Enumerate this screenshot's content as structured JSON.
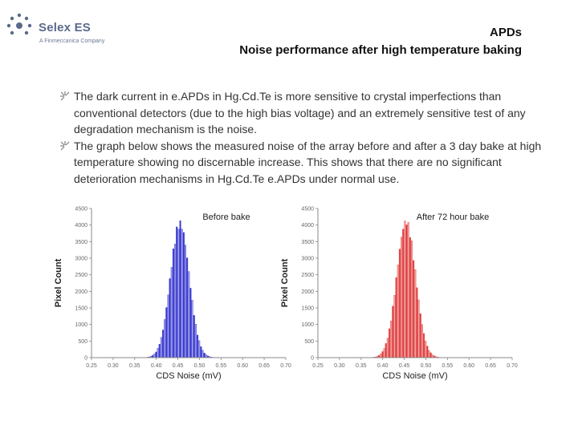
{
  "logo": {
    "name": "Selex ES",
    "tagline": "A Finmeccanica Company"
  },
  "title": {
    "line1": "APDs",
    "line2": "Noise performance after high temperature baking"
  },
  "bullets": [
    "The dark current in e.APDs in Hg.Cd.Te is more sensitive to crystal imperfections than conventional detectors (due to the high bias voltage) and an extremely sensitive test of any degradation mechanism is the noise.",
    "The graph below shows the measured noise of the array before and after a 3 day bake at high temperature showing no discernable increase. This shows that there are no significant deterioration mechanisms in Hg.Cd.Te e.APDs under normal use."
  ],
  "colors": {
    "before": "#3a3ad0",
    "after": "#e04040",
    "logo": "#5a6a8a"
  },
  "chart_data": [
    {
      "type": "bar",
      "title": "Before bake",
      "xlabel": "CDS Noise (mV)",
      "ylabel": "Pixel Count",
      "xlim": [
        0.25,
        0.7
      ],
      "ylim": [
        0,
        4500
      ],
      "x_ticks": [
        "0.25",
        "0.30",
        "0.35",
        "0.40",
        "0.45",
        "0.50",
        "0.55",
        "0.60",
        "0.65",
        "0.70"
      ],
      "y_ticks": [
        "0",
        "500",
        "1000",
        "1500",
        "2000",
        "2500",
        "3000",
        "3500",
        "4000",
        "4500"
      ],
      "distribution": {
        "peak_x": 0.455,
        "peak_count": 4150,
        "sigma": 0.022
      },
      "grid": false,
      "color": "#3a3ad0"
    },
    {
      "type": "bar",
      "title": "After 72 hour bake",
      "xlabel": "CDS Noise (mV)",
      "ylabel": "Pixel Count",
      "xlim": [
        0.25,
        0.7
      ],
      "ylim": [
        0,
        4500
      ],
      "x_ticks": [
        "0.25",
        "0.30",
        "0.35",
        "0.40",
        "0.45",
        "0.50",
        "0.55",
        "0.60",
        "0.65",
        "0.70"
      ],
      "y_ticks": [
        "0",
        "500",
        "1000",
        "1500",
        "2000",
        "2500",
        "3000",
        "3500",
        "4000",
        "4500"
      ],
      "distribution": {
        "peak_x": 0.455,
        "peak_count": 4200,
        "sigma": 0.022
      },
      "grid": false,
      "color": "#e04040"
    }
  ]
}
